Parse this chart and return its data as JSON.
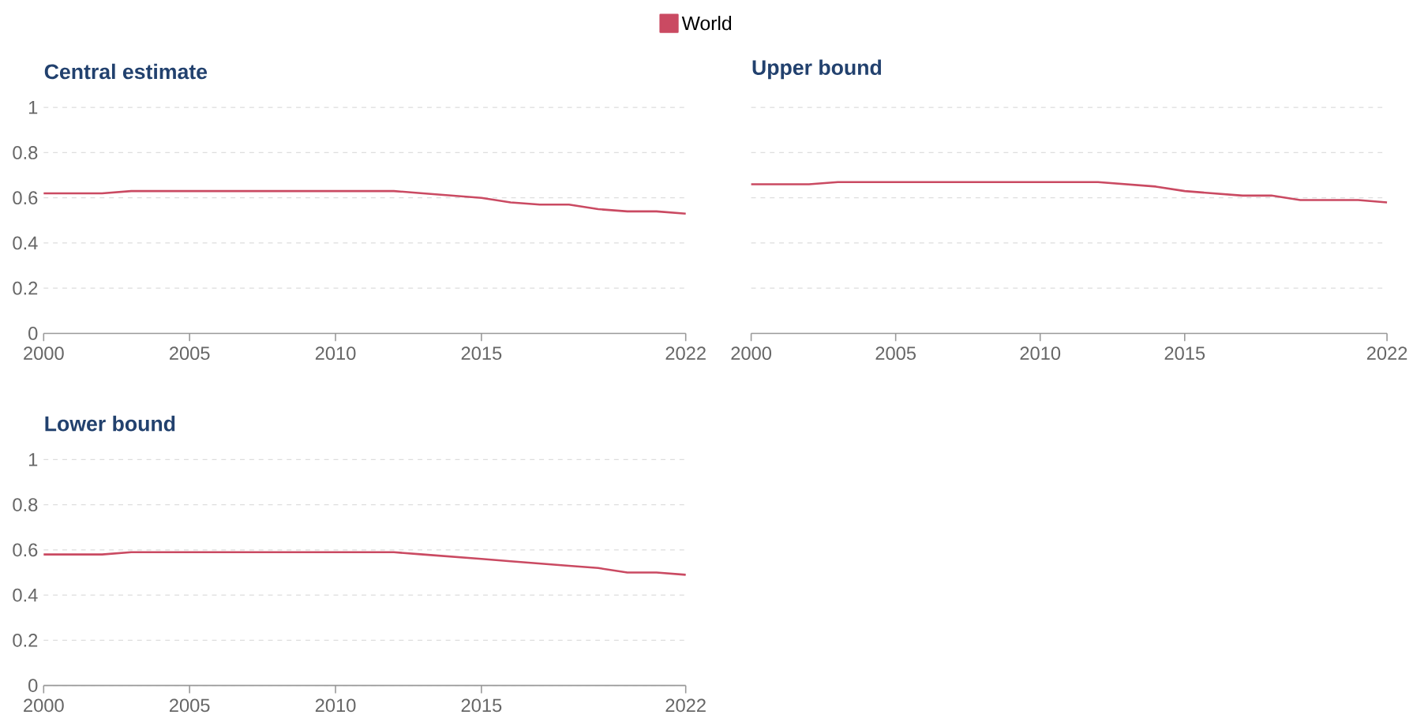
{
  "chart_data": [
    {
      "type": "line",
      "title": "Central estimate",
      "x": [
        2000,
        2001,
        2002,
        2003,
        2004,
        2005,
        2006,
        2007,
        2008,
        2009,
        2010,
        2011,
        2012,
        2013,
        2014,
        2015,
        2016,
        2017,
        2018,
        2019,
        2020,
        2021,
        2022
      ],
      "series": [
        {
          "name": "World",
          "color": "#ca4a62",
          "values": [
            0.62,
            0.62,
            0.62,
            0.63,
            0.63,
            0.63,
            0.63,
            0.63,
            0.63,
            0.63,
            0.63,
            0.63,
            0.63,
            0.62,
            0.61,
            0.6,
            0.58,
            0.57,
            0.57,
            0.55,
            0.54,
            0.54,
            0.53
          ]
        }
      ],
      "xlim": [
        2000,
        2022
      ],
      "xticks": [
        2000,
        2005,
        2010,
        2015,
        2022
      ],
      "ylim": [
        0,
        1
      ],
      "yticks": [
        0,
        0.2,
        0.4,
        0.6,
        0.8,
        1
      ],
      "grid": "y",
      "legend": "top",
      "line_style": "solid"
    },
    {
      "type": "line",
      "title": "Upper bound",
      "x": [
        2000,
        2001,
        2002,
        2003,
        2004,
        2005,
        2006,
        2007,
        2008,
        2009,
        2010,
        2011,
        2012,
        2013,
        2014,
        2015,
        2016,
        2017,
        2018,
        2019,
        2020,
        2021,
        2022
      ],
      "series": [
        {
          "color": "#ca4a62",
          "values": [
            0.66,
            0.66,
            0.66,
            0.67,
            0.67,
            0.67,
            0.67,
            0.67,
            0.67,
            0.67,
            0.67,
            0.67,
            0.67,
            0.66,
            0.65,
            0.63,
            0.62,
            0.61,
            0.61,
            0.59,
            0.59,
            0.59,
            0.58
          ]
        }
      ],
      "xlim": [
        2000,
        2022
      ],
      "xticks": [
        2000,
        2005,
        2010,
        2015,
        2022
      ],
      "ylim": [
        0,
        1
      ],
      "yticks": [
        0,
        0.2,
        0.4,
        0.6,
        0.8,
        1
      ],
      "grid": "y",
      "tick_labels": "x",
      "line_style": "solid"
    },
    {
      "type": "line",
      "title": "Lower bound",
      "x": [
        2000,
        2001,
        2002,
        2003,
        2004,
        2005,
        2006,
        2007,
        2008,
        2009,
        2010,
        2011,
        2012,
        2013,
        2014,
        2015,
        2016,
        2017,
        2018,
        2019,
        2020,
        2021,
        2022
      ],
      "series": [
        {
          "color": "#ca4a62",
          "values": [
            0.58,
            0.58,
            0.58,
            0.59,
            0.59,
            0.59,
            0.59,
            0.59,
            0.59,
            0.59,
            0.59,
            0.59,
            0.59,
            0.58,
            0.57,
            0.56,
            0.55,
            0.54,
            0.53,
            0.52,
            0.5,
            0.5,
            0.49
          ]
        }
      ],
      "xlim": [
        2000,
        2022
      ],
      "xticks": [
        2000,
        2005,
        2010,
        2015,
        2022
      ],
      "ylim": [
        0,
        1
      ],
      "yticks": [
        0,
        0.2,
        0.4,
        0.6,
        0.8,
        1
      ],
      "grid": "y",
      "line_style": "solid"
    }
  ]
}
